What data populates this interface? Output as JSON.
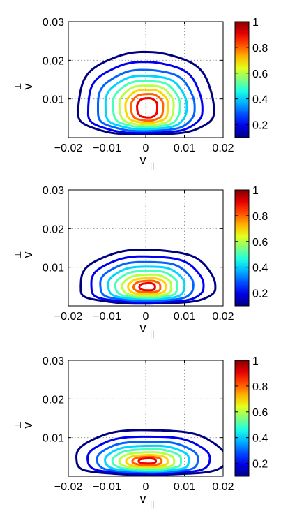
{
  "chart_data": [
    {
      "type": "contour",
      "xlabel": "v",
      "xlabel_subscript": "||",
      "ylabel": "v",
      "ylabel_subscript": "⊥",
      "xlim": [
        -0.02,
        0.02
      ],
      "ylim": [
        0,
        0.03
      ],
      "x_ticks": [
        "−0.02",
        "−0.01",
        "0",
        "0.01",
        "0.02"
      ],
      "y_ticks": [
        "0.01",
        "0.02",
        "0.03"
      ],
      "grid": true,
      "colorbar": {
        "colormap": "jet",
        "range": [
          0.1,
          1
        ],
        "ticks": [
          "0.2",
          "0.4",
          "0.6",
          "0.8",
          "1"
        ]
      },
      "peak": {
        "x": 0.0005,
        "y": 0.008
      },
      "levels": [
        {
          "level": 0.1,
          "x_left": -0.0175,
          "x_right": 0.0175,
          "y_bottom": 0.0008,
          "y_top": 0.022,
          "baseline_gap": true
        },
        {
          "level": 0.2,
          "x_left": -0.015,
          "x_right": 0.0145,
          "y_bottom": 0.0012,
          "y_top": 0.0195
        },
        {
          "level": 0.3,
          "x_left": -0.0125,
          "x_right": 0.0125,
          "y_bottom": 0.0017,
          "y_top": 0.0175
        },
        {
          "level": 0.4,
          "x_left": -0.0105,
          "x_right": 0.0105,
          "y_bottom": 0.0022,
          "y_top": 0.016
        },
        {
          "level": 0.5,
          "x_left": -0.0085,
          "x_right": 0.0088,
          "y_bottom": 0.0027,
          "y_top": 0.0147
        },
        {
          "level": 0.6,
          "x_left": -0.0068,
          "x_right": 0.0072,
          "y_bottom": 0.0032,
          "y_top": 0.0135
        },
        {
          "level": 0.7,
          "x_left": -0.0052,
          "x_right": 0.0058,
          "y_bottom": 0.0038,
          "y_top": 0.0124
        },
        {
          "level": 0.8,
          "x_left": -0.0038,
          "x_right": 0.0045,
          "y_bottom": 0.0044,
          "y_top": 0.0113
        },
        {
          "level": 0.9,
          "x_left": -0.0022,
          "x_right": 0.003,
          "y_bottom": 0.0052,
          "y_top": 0.0102
        }
      ]
    },
    {
      "type": "contour",
      "xlabel": "v",
      "xlabel_subscript": "||",
      "ylabel": "v",
      "ylabel_subscript": "⊥",
      "xlim": [
        -0.02,
        0.02
      ],
      "ylim": [
        0,
        0.03
      ],
      "x_ticks": [
        "−0.02",
        "−0.01",
        "0",
        "0.01",
        "0.02"
      ],
      "y_ticks": [
        "0.01",
        "0.02",
        "0.03"
      ],
      "grid": true,
      "colorbar": {
        "colormap": "jet",
        "range": [
          0.1,
          1
        ],
        "ticks": [
          "0.2",
          "0.4",
          "0.6",
          "0.8",
          "1"
        ]
      },
      "peak": {
        "x": 0.001,
        "y": 0.005
      },
      "levels": [
        {
          "level": 0.1,
          "x_left": -0.017,
          "x_right": 0.0178,
          "y_bottom": 0.0006,
          "y_top": 0.0145,
          "baseline_gap": true
        },
        {
          "level": 0.2,
          "x_left": -0.0142,
          "x_right": 0.0148,
          "y_bottom": 0.0009,
          "y_top": 0.0128
        },
        {
          "level": 0.3,
          "x_left": -0.0118,
          "x_right": 0.0122,
          "y_bottom": 0.0013,
          "y_top": 0.0114
        },
        {
          "level": 0.4,
          "x_left": -0.0097,
          "x_right": 0.01,
          "y_bottom": 0.0017,
          "y_top": 0.0102
        },
        {
          "level": 0.5,
          "x_left": -0.0078,
          "x_right": 0.0082,
          "y_bottom": 0.0021,
          "y_top": 0.0091
        },
        {
          "level": 0.6,
          "x_left": -0.006,
          "x_right": 0.0066,
          "y_bottom": 0.0025,
          "y_top": 0.0081
        },
        {
          "level": 0.7,
          "x_left": -0.0045,
          "x_right": 0.0052,
          "y_bottom": 0.003,
          "y_top": 0.0072
        },
        {
          "level": 0.8,
          "x_left": -0.0031,
          "x_right": 0.0038,
          "y_bottom": 0.0035,
          "y_top": 0.0065
        },
        {
          "level": 0.9,
          "x_left": -0.0016,
          "x_right": 0.0024,
          "y_bottom": 0.004,
          "y_top": 0.0059
        }
      ]
    },
    {
      "type": "contour",
      "xlabel": "v",
      "xlabel_subscript": "||",
      "ylabel": "v",
      "ylabel_subscript": "⊥",
      "xlim": [
        -0.02,
        0.02
      ],
      "ylim": [
        0,
        0.03
      ],
      "x_ticks": [
        "−0.02",
        "−0.01",
        "0",
        "0.01",
        "0.02"
      ],
      "y_ticks": [
        "0.01",
        "0.02",
        "0.03"
      ],
      "grid": true,
      "colorbar": {
        "colormap": "jet",
        "range": [
          0.1,
          1
        ],
        "ticks": [
          "0.2",
          "0.4",
          "0.6",
          "0.8",
          "1"
        ]
      },
      "peak": {
        "x": 0.001,
        "y": 0.004
      },
      "levels": [
        {
          "level": 0.1,
          "x_left": -0.018,
          "x_right": 0.0205,
          "y_bottom": 0.0004,
          "y_top": 0.012,
          "baseline_gap": true
        },
        {
          "level": 0.2,
          "x_left": -0.015,
          "x_right": 0.0165,
          "y_bottom": 0.0007,
          "y_top": 0.0103
        },
        {
          "level": 0.3,
          "x_left": -0.0125,
          "x_right": 0.0135,
          "y_bottom": 0.001,
          "y_top": 0.009
        },
        {
          "level": 0.4,
          "x_left": -0.0104,
          "x_right": 0.0112,
          "y_bottom": 0.0013,
          "y_top": 0.0079
        },
        {
          "level": 0.5,
          "x_left": -0.0085,
          "x_right": 0.0092,
          "y_bottom": 0.0017,
          "y_top": 0.007
        },
        {
          "level": 0.6,
          "x_left": -0.0067,
          "x_right": 0.0074,
          "y_bottom": 0.0021,
          "y_top": 0.0062
        },
        {
          "level": 0.7,
          "x_left": -0.005,
          "x_right": 0.0057,
          "y_bottom": 0.0025,
          "y_top": 0.0055
        },
        {
          "level": 0.8,
          "x_left": -0.0034,
          "x_right": 0.0041,
          "y_bottom": 0.0029,
          "y_top": 0.005
        },
        {
          "level": 0.9,
          "x_left": -0.0018,
          "x_right": 0.0026,
          "y_bottom": 0.0033,
          "y_top": 0.0046
        }
      ]
    }
  ]
}
